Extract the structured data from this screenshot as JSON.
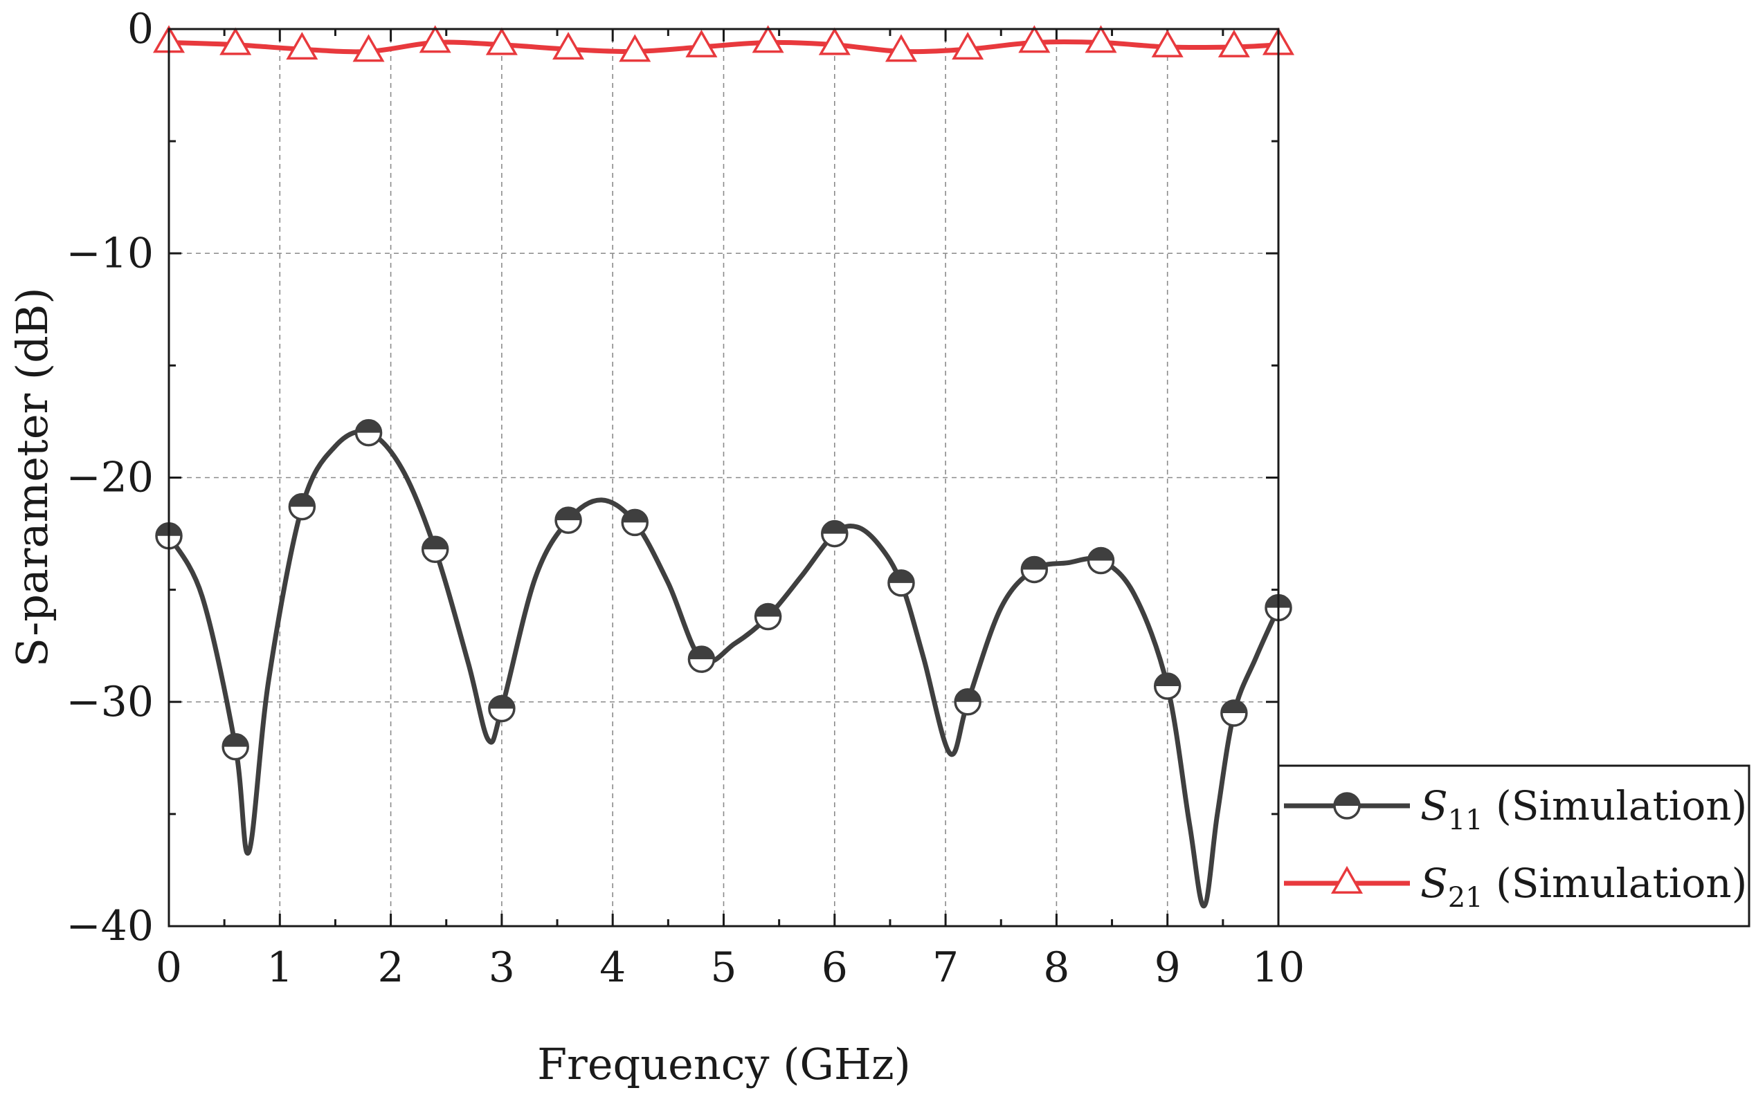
{
  "chart_data": {
    "type": "line",
    "title": "",
    "xlabel": "Frequency (GHz)",
    "ylabel": "S-parameter (dB)",
    "xlim": [
      0,
      10
    ],
    "ylim": [
      -40,
      0
    ],
    "x_ticks": [
      0,
      1,
      2,
      3,
      4,
      5,
      6,
      7,
      8,
      9,
      10
    ],
    "x_tick_labels": [
      "0",
      "1",
      "2",
      "3",
      "4",
      "5",
      "6",
      "7",
      "8",
      "9",
      "10"
    ],
    "y_ticks": [
      0,
      -10,
      -20,
      -30,
      -40
    ],
    "y_tick_labels": [
      "0",
      "−10",
      "−20",
      "−30",
      "−40"
    ],
    "grid": true,
    "legend_position": "bottom-right, outside plot",
    "series": [
      {
        "name": "S11 (Simulation)",
        "legend_symbol": "S",
        "legend_subscript": "11",
        "legend_suffix": " (Simulation)",
        "color": "#3f3f3f",
        "marker": "half-filled-circle",
        "x": [
          0,
          0.3,
          0.6,
          0.72,
          0.9,
          1.2,
          1.5,
          1.8,
          2.1,
          2.4,
          2.7,
          2.88,
          3.0,
          3.3,
          3.6,
          3.9,
          4.2,
          4.5,
          4.8,
          5.1,
          5.4,
          5.7,
          6.0,
          6.2,
          6.4,
          6.6,
          6.8,
          7.04,
          7.2,
          7.5,
          7.8,
          8.1,
          8.4,
          8.7,
          9.0,
          9.2,
          9.33,
          9.45,
          9.6,
          9.8,
          10.0
        ],
        "values": [
          -22.6,
          -25.3,
          -32.0,
          -36.7,
          -29.0,
          -21.3,
          -18.6,
          -18.0,
          -19.6,
          -23.2,
          -28.3,
          -31.7,
          -30.3,
          -24.5,
          -21.9,
          -21.0,
          -22.0,
          -24.7,
          -28.1,
          -27.4,
          -26.2,
          -24.4,
          -22.5,
          -22.2,
          -23.0,
          -24.7,
          -28.0,
          -32.3,
          -30.0,
          -25.8,
          -24.1,
          -23.8,
          -23.7,
          -25.2,
          -29.3,
          -35.5,
          -39.1,
          -35.0,
          -30.5,
          -28.0,
          -25.8
        ],
        "marker_x": [
          0,
          0.6,
          1.2,
          1.8,
          2.4,
          3.0,
          3.6,
          4.2,
          4.8,
          5.4,
          6.0,
          6.6,
          7.2,
          7.8,
          8.4,
          9.0,
          9.6,
          10.0
        ],
        "marker_values": [
          -22.6,
          -32.0,
          -21.3,
          -18.0,
          -23.2,
          -30.3,
          -21.9,
          -22.0,
          -28.1,
          -26.2,
          -22.5,
          -24.7,
          -30.0,
          -24.1,
          -23.7,
          -29.3,
          -30.5,
          -25.8
        ]
      },
      {
        "name": "S21 (Simulation)",
        "legend_symbol": "S",
        "legend_subscript": "21",
        "legend_suffix": " (Simulation)",
        "color": "#e8393d",
        "marker": "open-triangle",
        "x": [
          0,
          0.6,
          1.2,
          1.8,
          2.4,
          3.0,
          3.6,
          4.2,
          4.8,
          5.4,
          6.0,
          6.6,
          7.2,
          7.8,
          8.4,
          9.0,
          9.6,
          10.0
        ],
        "values": [
          -0.6,
          -0.7,
          -0.9,
          -1.0,
          -0.6,
          -0.7,
          -0.9,
          -1.0,
          -0.8,
          -0.6,
          -0.7,
          -1.0,
          -0.9,
          -0.6,
          -0.6,
          -0.8,
          -0.8,
          -0.7
        ],
        "marker_x": [
          0,
          0.6,
          1.2,
          1.8,
          2.4,
          3.0,
          3.6,
          4.2,
          4.8,
          5.4,
          6.0,
          6.6,
          7.2,
          7.8,
          8.4,
          9.0,
          9.6,
          10.0
        ],
        "marker_values": [
          -0.6,
          -0.7,
          -0.9,
          -1.0,
          -0.6,
          -0.7,
          -0.9,
          -1.0,
          -0.8,
          -0.6,
          -0.7,
          -1.0,
          -0.9,
          -0.6,
          -0.6,
          -0.8,
          -0.8,
          -0.7
        ]
      }
    ]
  }
}
